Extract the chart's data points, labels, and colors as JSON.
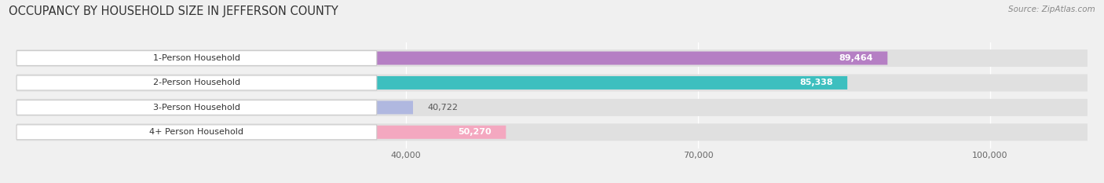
{
  "title": "OCCUPANCY BY HOUSEHOLD SIZE IN JEFFERSON COUNTY",
  "source": "Source: ZipAtlas.com",
  "categories": [
    "1-Person Household",
    "2-Person Household",
    "3-Person Household",
    "4+ Person Household"
  ],
  "values": [
    89464,
    85338,
    40722,
    50270
  ],
  "bar_colors": [
    "#b57fc4",
    "#3dbfbf",
    "#b0b8e0",
    "#f4a8c0"
  ],
  "value_text_colors": [
    "white",
    "white",
    "#555555",
    "#555555"
  ],
  "background_color": "#f0f0f0",
  "bar_bg_color": "#e0e0e0",
  "label_bg_color": "#ffffff",
  "xlim_max": 110000,
  "xticks": [
    40000,
    70000,
    100000
  ],
  "xtick_labels": [
    "40,000",
    "70,000",
    "100,000"
  ],
  "title_fontsize": 10.5,
  "source_fontsize": 7.5,
  "bar_label_fontsize": 8,
  "tick_fontsize": 8,
  "value_fontsize": 8
}
